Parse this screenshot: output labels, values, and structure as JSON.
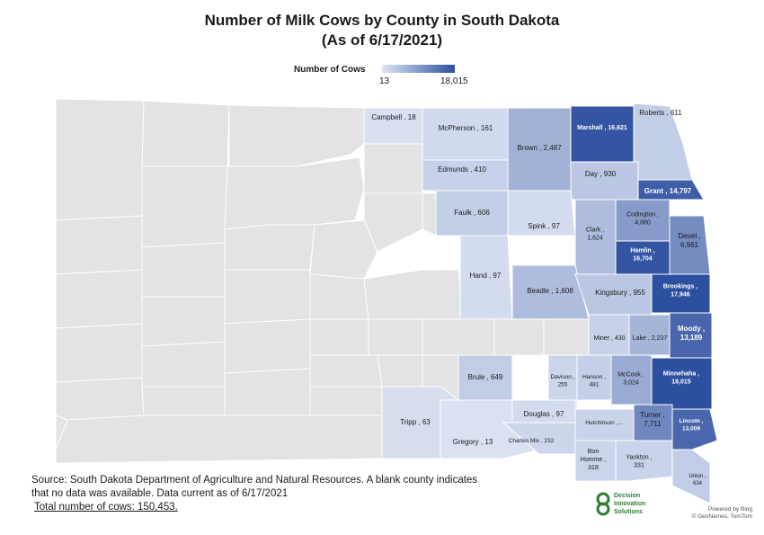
{
  "title_line1": "Number of Milk Cows by County in South Dakota",
  "title_line2": "(As of 6/17/2021)",
  "legend": {
    "label": "Number of Cows",
    "min": "13",
    "max": "18,015",
    "color_min": "#dde4f3",
    "color_max": "#2d4f9f"
  },
  "no_data_color": "#e3e3e3",
  "counties": [
    {
      "id": "roberts",
      "label": [
        "Roberts ,  611"
      ],
      "value": 611
    },
    {
      "id": "campbell",
      "label": [
        "Campbell ,  18"
      ],
      "value": 18
    },
    {
      "id": "mcpherson",
      "label": [
        "McPherson ,  161"
      ],
      "value": 161
    },
    {
      "id": "brown",
      "label": [
        "Brown ,  2,487"
      ],
      "value": 2487
    },
    {
      "id": "marshall",
      "label": [
        "Marshall ,  16,621"
      ],
      "value": 16621
    },
    {
      "id": "edmunds",
      "label": [
        "Edmunds ,  410"
      ],
      "value": 410
    },
    {
      "id": "day",
      "label": [
        "Day ,  930"
      ],
      "value": 930
    },
    {
      "id": "grant",
      "label": [
        "Grant ,  14,797"
      ],
      "value": 14797
    },
    {
      "id": "faulk",
      "label": [
        "Faulk ,  606"
      ],
      "value": 606
    },
    {
      "id": "spink",
      "label": [
        "Spink ,  97"
      ],
      "value": 97
    },
    {
      "id": "codington",
      "label": [
        "Codington ,",
        "4,880"
      ],
      "value": 4880
    },
    {
      "id": "clark",
      "label": [
        "Clark ,",
        "1,624"
      ],
      "value": 1624
    },
    {
      "id": "deuel",
      "label": [
        "Deuel ,",
        "6,961"
      ],
      "value": 6961
    },
    {
      "id": "hamlin",
      "label": [
        "Hamlin ,",
        "16,704"
      ],
      "value": 16704
    },
    {
      "id": "hand",
      "label": [
        "Hand ,  97"
      ],
      "value": 97
    },
    {
      "id": "beadle",
      "label": [
        "Beadle ,  1,608"
      ],
      "value": 1608
    },
    {
      "id": "kingsbury",
      "label": [
        "Kingsbury ,  955"
      ],
      "value": 955
    },
    {
      "id": "brookings",
      "label": [
        "Brookings ,",
        "17,946"
      ],
      "value": 17946
    },
    {
      "id": "miner",
      "label": [
        "Miner ,  430"
      ],
      "value": 430
    },
    {
      "id": "lake",
      "label": [
        "Lake ,  2,237"
      ],
      "value": 2237
    },
    {
      "id": "moody",
      "label": [
        "Moody ,",
        "13,189"
      ],
      "value": 13189
    },
    {
      "id": "brule",
      "label": [
        "Brule ,  649"
      ],
      "value": 649
    },
    {
      "id": "davison",
      "label": [
        "Davison ,",
        "255"
      ],
      "value": 255
    },
    {
      "id": "hanson",
      "label": [
        "Hanson ,",
        "481"
      ],
      "value": 481
    },
    {
      "id": "mccook",
      "label": [
        "McCook ,",
        "3,024"
      ],
      "value": 3024
    },
    {
      "id": "minnehaha",
      "label": [
        "Minnehaha ,",
        "18,015"
      ],
      "value": 18015
    },
    {
      "id": "douglas",
      "label": [
        "Douglas ,  97"
      ],
      "value": 97
    },
    {
      "id": "hutchinson",
      "label": [
        "Hutchinson ,..."
      ]
    },
    {
      "id": "turner",
      "label": [
        "Turner ,",
        "7,711"
      ],
      "value": 7711
    },
    {
      "id": "lincoln",
      "label": [
        "Lincoln ,",
        "13,009"
      ],
      "value": 13009
    },
    {
      "id": "tripp",
      "label": [
        "Tripp ,  63"
      ],
      "value": 63
    },
    {
      "id": "gregory",
      "label": [
        "Gregory ,  13"
      ],
      "value": 13
    },
    {
      "id": "charlesmix",
      "label": [
        "Charles Mix ,  232"
      ],
      "value": 232
    },
    {
      "id": "bonhomme",
      "label": [
        "Bon",
        "Homme ,",
        "318"
      ],
      "value": 318
    },
    {
      "id": "yankton",
      "label": [
        "Yankton ,",
        "331"
      ],
      "value": 331
    },
    {
      "id": "union",
      "label": [
        "Union ,",
        "634"
      ],
      "value": 634
    }
  ],
  "source_line1": "Source: South Dakota Department of Agriculture and Natural Resources. A blank county indicates",
  "source_line2": "that no data was available. Data current as of 6/17/2021",
  "total": "Total number of cows: 150,453.",
  "logo": {
    "line1": "Decision",
    "line2": "Innovation",
    "line3": "Solutions"
  },
  "credits": {
    "line1": "Powered by Bing",
    "line2": "© GeoNames, TomTom"
  }
}
